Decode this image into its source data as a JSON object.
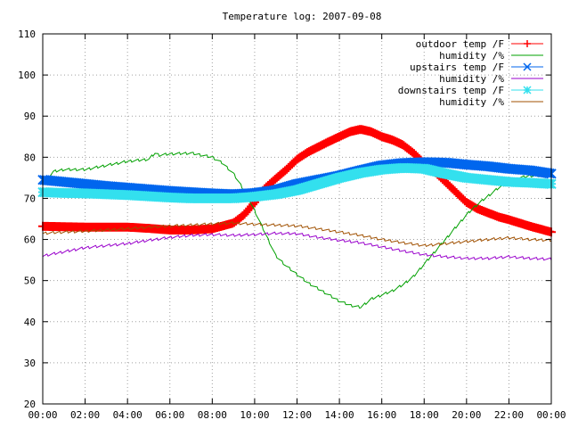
{
  "chart_data": {
    "type": "line",
    "title": "Temperature log: 2007-09-08",
    "xlabel": "",
    "ylabel": "",
    "x_ticks": [
      "00:00",
      "02:00",
      "04:00",
      "06:00",
      "08:00",
      "10:00",
      "12:00",
      "14:00",
      "16:00",
      "18:00",
      "20:00",
      "22:00",
      "00:00"
    ],
    "x_range_hours": [
      0,
      24
    ],
    "y_ticks": [
      20,
      30,
      40,
      50,
      60,
      70,
      80,
      90,
      100,
      110
    ],
    "ylim": [
      20,
      110
    ],
    "grid": true,
    "legend_position": "top-right",
    "series": [
      {
        "name": "outdoor temp /F",
        "color": "#ff0000",
        "marker": "plus",
        "style": "thick",
        "x": [
          0,
          1,
          2,
          3,
          4,
          5,
          6,
          7,
          8,
          9,
          9.5,
          10,
          10.5,
          11,
          11.5,
          12,
          12.5,
          13,
          13.5,
          14,
          14.5,
          15,
          15.5,
          16,
          16.5,
          17,
          17.5,
          18,
          18.5,
          19,
          19.5,
          20,
          20.5,
          21,
          21.5,
          22,
          22.5,
          23,
          23.5,
          24
        ],
        "y": [
          63.2,
          63.1,
          63.0,
          63.0,
          63.0,
          62.7,
          62.3,
          62.3,
          62.6,
          64.0,
          66.0,
          69.0,
          72.5,
          74.8,
          77.0,
          79.5,
          81.2,
          82.5,
          83.8,
          85.0,
          86.2,
          86.8,
          86.2,
          85.0,
          84.2,
          83.0,
          81.0,
          78.5,
          76.5,
          74.0,
          71.5,
          69.0,
          67.5,
          66.5,
          65.5,
          64.8,
          64.0,
          63.2,
          62.5,
          61.8
        ]
      },
      {
        "name": "humidity /%",
        "color": "#00a000",
        "marker": "none",
        "style": "thin",
        "x": [
          0,
          0.5,
          1,
          2,
          3,
          4,
          5,
          5.3,
          5.5,
          6,
          7,
          8,
          8.5,
          9,
          9.5,
          10,
          10.5,
          11,
          11.5,
          12,
          12.5,
          13,
          13.5,
          14,
          14.5,
          15,
          15.5,
          16,
          16.5,
          17,
          17.5,
          18,
          18.5,
          19,
          19.5,
          20,
          20.5,
          21,
          21.5,
          22,
          22.5,
          23,
          23.5,
          24
        ],
        "y": [
          73.5,
          76.5,
          77.0,
          77.0,
          78.0,
          79.0,
          79.5,
          81.0,
          80.5,
          80.8,
          81.0,
          80.0,
          78.5,
          76.0,
          72.0,
          67.0,
          61.5,
          56.0,
          53.5,
          51.5,
          49.5,
          48.0,
          46.5,
          45.0,
          44.0,
          43.5,
          45.5,
          46.5,
          47.5,
          49.0,
          51.0,
          54.0,
          57.0,
          60.0,
          63.0,
          66.0,
          68.5,
          70.5,
          72.5,
          74.0,
          75.0,
          75.5,
          75.5,
          75.3
        ]
      },
      {
        "name": "upstairs temp /F",
        "color": "#0066ee",
        "marker": "cross",
        "style": "thick",
        "x": [
          0,
          1,
          2,
          3,
          4,
          5,
          6,
          7,
          8,
          9,
          10,
          11,
          12,
          13,
          14,
          15,
          16,
          17,
          18,
          19,
          20,
          21,
          22,
          23,
          24
        ],
        "y": [
          74.5,
          74.0,
          73.5,
          73.0,
          72.6,
          72.2,
          71.8,
          71.5,
          71.2,
          71.0,
          71.3,
          72.0,
          73.5,
          74.5,
          75.5,
          76.8,
          78.0,
          78.6,
          78.8,
          78.7,
          78.2,
          77.8,
          77.2,
          76.8,
          76.0
        ]
      },
      {
        "name": "humidity /%",
        "color": "#9900cc",
        "marker": "none",
        "style": "thin",
        "x": [
          0,
          1,
          2,
          3,
          4,
          5,
          6,
          7,
          8,
          9,
          10,
          11,
          12,
          13,
          14,
          15,
          16,
          17,
          18,
          19,
          20,
          21,
          22,
          23,
          24
        ],
        "y": [
          56.0,
          57.0,
          58.0,
          58.5,
          59.0,
          59.8,
          60.5,
          61.0,
          61.2,
          61.0,
          61.2,
          61.5,
          61.4,
          60.5,
          59.8,
          59.2,
          58.2,
          57.2,
          56.3,
          55.8,
          55.4,
          55.4,
          55.8,
          55.4,
          55.2
        ]
      },
      {
        "name": "downstairs temp /F",
        "color": "#33e0ee",
        "marker": "star",
        "style": "thick",
        "x": [
          0,
          1,
          2,
          3,
          4,
          5,
          6,
          7,
          8,
          9,
          10,
          11,
          12,
          13,
          14,
          15,
          16,
          17,
          18,
          19,
          20,
          21,
          22,
          23,
          24
        ],
        "y": [
          71.5,
          71.3,
          71.2,
          71.0,
          70.8,
          70.5,
          70.2,
          70.0,
          70.0,
          70.0,
          70.4,
          71.0,
          72.0,
          73.5,
          75.0,
          76.2,
          77.0,
          77.4,
          77.2,
          76.0,
          75.0,
          74.5,
          74.0,
          73.8,
          73.5
        ]
      },
      {
        "name": "humidity /%",
        "color": "#a05000",
        "marker": "none",
        "style": "thin",
        "x": [
          0,
          1,
          2,
          3,
          4,
          5,
          6,
          7,
          8,
          9,
          10,
          11,
          12,
          13,
          14,
          15,
          16,
          17,
          18,
          19,
          20,
          21,
          22,
          23,
          24
        ],
        "y": [
          61.5,
          61.8,
          62.0,
          62.3,
          62.6,
          63.0,
          63.3,
          63.5,
          63.8,
          64.0,
          63.7,
          63.5,
          63.3,
          62.6,
          61.8,
          61.0,
          60.0,
          59.2,
          58.5,
          59.0,
          59.5,
          60.0,
          60.4,
          60.0,
          59.8
        ]
      }
    ]
  }
}
